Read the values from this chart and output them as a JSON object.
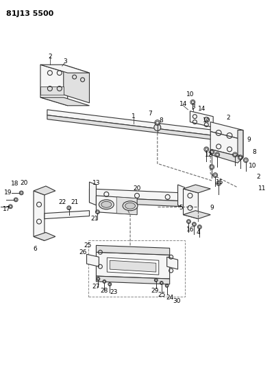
{
  "title": "81J13 5500",
  "bg_color": "#ffffff",
  "line_color": "#333333",
  "title_fontsize": 8,
  "label_fontsize": 6.5,
  "lw": 0.8
}
